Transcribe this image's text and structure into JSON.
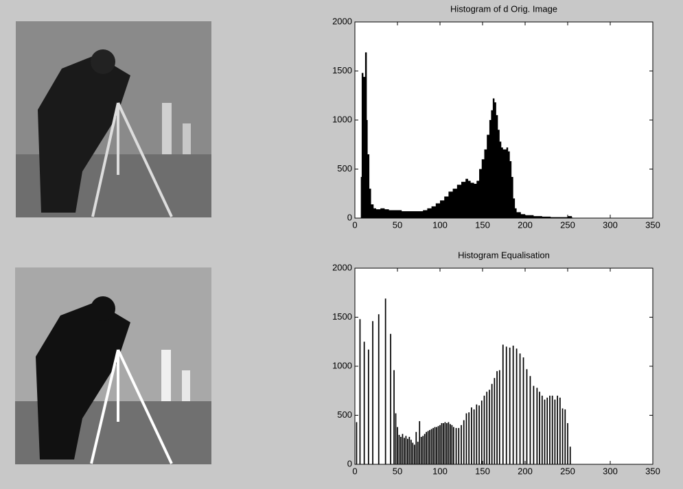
{
  "chart_data": [
    {
      "type": "area",
      "title": "Histogram of d Orig. Image",
      "color": "#000000",
      "x": [
        7,
        8,
        10,
        12,
        14,
        15,
        17,
        19,
        22,
        25,
        30,
        35,
        40,
        45,
        50,
        55,
        60,
        65,
        70,
        75,
        80,
        85,
        90,
        95,
        100,
        105,
        110,
        115,
        120,
        125,
        130,
        133,
        136,
        140,
        143,
        146,
        149,
        152,
        155,
        158,
        160,
        162,
        164,
        166,
        168,
        170,
        172,
        174,
        176,
        178,
        180,
        182,
        184,
        186,
        188,
        190,
        195,
        200,
        205,
        210,
        215,
        220,
        230,
        240,
        250,
        255
      ],
      "values": [
        420,
        1480,
        1440,
        1690,
        1000,
        650,
        300,
        140,
        100,
        90,
        100,
        90,
        80,
        80,
        80,
        70,
        70,
        70,
        70,
        70,
        80,
        100,
        120,
        150,
        180,
        220,
        270,
        300,
        340,
        370,
        400,
        380,
        360,
        350,
        380,
        500,
        600,
        700,
        850,
        1000,
        1100,
        1220,
        1180,
        1050,
        900,
        780,
        720,
        700,
        700,
        720,
        680,
        580,
        420,
        200,
        100,
        60,
        40,
        30,
        30,
        20,
        20,
        15,
        10,
        10,
        20,
        5
      ],
      "xlim": [
        0,
        350
      ],
      "xticks": [
        0,
        50,
        100,
        150,
        200,
        250,
        300,
        350
      ],
      "ylim": [
        0,
        2000
      ],
      "yticks": [
        0,
        500,
        1000,
        1500,
        2000
      ]
    },
    {
      "type": "bar",
      "title": "Histogram Equalisation",
      "color": "#000000",
      "x": [
        2,
        6,
        11,
        16,
        21,
        28,
        36,
        42,
        46,
        48,
        50,
        52,
        54,
        56,
        58,
        60,
        62,
        64,
        66,
        68,
        70,
        72,
        74,
        76,
        78,
        80,
        82,
        84,
        86,
        88,
        90,
        92,
        94,
        96,
        98,
        100,
        102,
        104,
        106,
        108,
        110,
        112,
        114,
        116,
        119,
        122,
        125,
        128,
        131,
        134,
        137,
        140,
        143,
        146,
        149,
        152,
        155,
        158,
        161,
        164,
        167,
        170,
        174,
        178,
        182,
        186,
        190,
        194,
        198,
        202,
        206,
        210,
        214,
        217,
        220,
        223,
        226,
        229,
        232,
        235,
        238,
        241,
        244,
        247,
        250,
        253
      ],
      "values": [
        430,
        1480,
        1250,
        1170,
        1460,
        1530,
        1690,
        1330,
        960,
        520,
        380,
        300,
        280,
        310,
        270,
        290,
        260,
        280,
        250,
        220,
        200,
        330,
        230,
        440,
        280,
        290,
        310,
        330,
        340,
        350,
        360,
        370,
        380,
        380,
        390,
        400,
        420,
        420,
        430,
        420,
        430,
        410,
        400,
        380,
        370,
        370,
        400,
        450,
        520,
        530,
        580,
        560,
        610,
        600,
        650,
        700,
        740,
        760,
        820,
        880,
        950,
        960,
        1220,
        1200,
        1190,
        1210,
        1180,
        1130,
        1090,
        970,
        900,
        800,
        780,
        740,
        700,
        660,
        680,
        700,
        700,
        660,
        700,
        680,
        570,
        560,
        420,
        180
      ],
      "xlim": [
        0,
        350
      ],
      "xticks": [
        0,
        50,
        100,
        150,
        200,
        250,
        300,
        350
      ],
      "ylim": [
        0,
        2000
      ],
      "yticks": [
        0,
        500,
        1000,
        1500,
        2000
      ]
    }
  ]
}
